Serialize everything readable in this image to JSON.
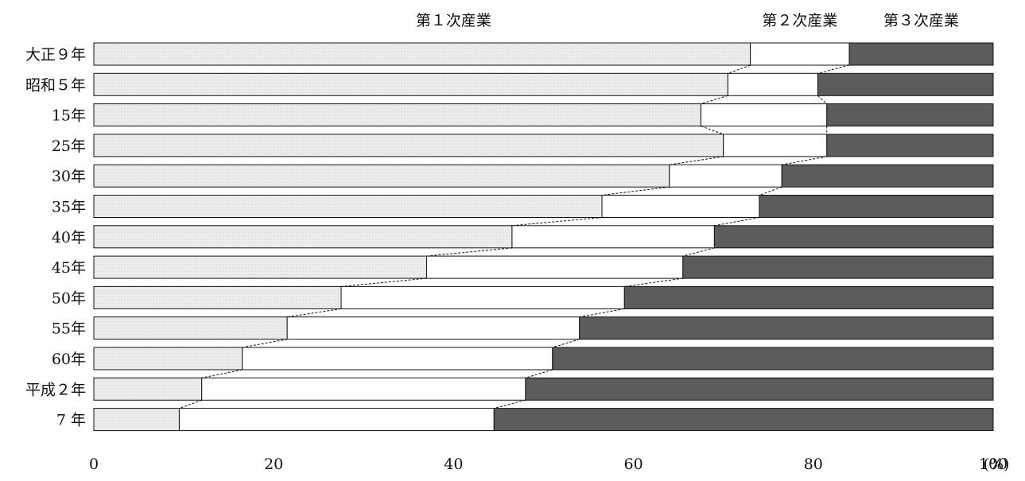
{
  "chart_data": {
    "type": "bar",
    "stacked": "percent",
    "orientation": "horizontal",
    "categories": [
      "大正９年",
      "昭和５年",
      "15年",
      "25年",
      "30年",
      "35年",
      "40年",
      "45年",
      "50年",
      "55年",
      "60年",
      "平成２年",
      "7 年"
    ],
    "series": [
      {
        "name": "第１次産業",
        "values": [
          73.0,
          70.5,
          67.5,
          70.0,
          64.0,
          56.5,
          46.5,
          37.0,
          27.5,
          21.5,
          16.5,
          12.0,
          9.5
        ]
      },
      {
        "name": "第２次産業",
        "values": [
          11.0,
          10.0,
          14.0,
          11.5,
          12.5,
          17.5,
          22.5,
          28.5,
          31.5,
          32.5,
          34.5,
          36.0,
          35.0
        ]
      },
      {
        "name": "第３次産業",
        "values": [
          16.0,
          19.5,
          18.5,
          18.5,
          23.5,
          26.0,
          31.0,
          34.5,
          41.0,
          46.0,
          49.0,
          52.0,
          55.5
        ]
      }
    ],
    "xlim": [
      0,
      100
    ],
    "xticks": [
      0,
      20,
      40,
      60,
      80,
      100
    ],
    "x_unit": "(%)",
    "legend_position": "top",
    "connector_lines": "dashed",
    "colors": {
      "primary": "#e8e8e8",
      "secondary": "#ffffff",
      "tertiary": "#5c5c5c",
      "stroke": "#111111"
    }
  }
}
